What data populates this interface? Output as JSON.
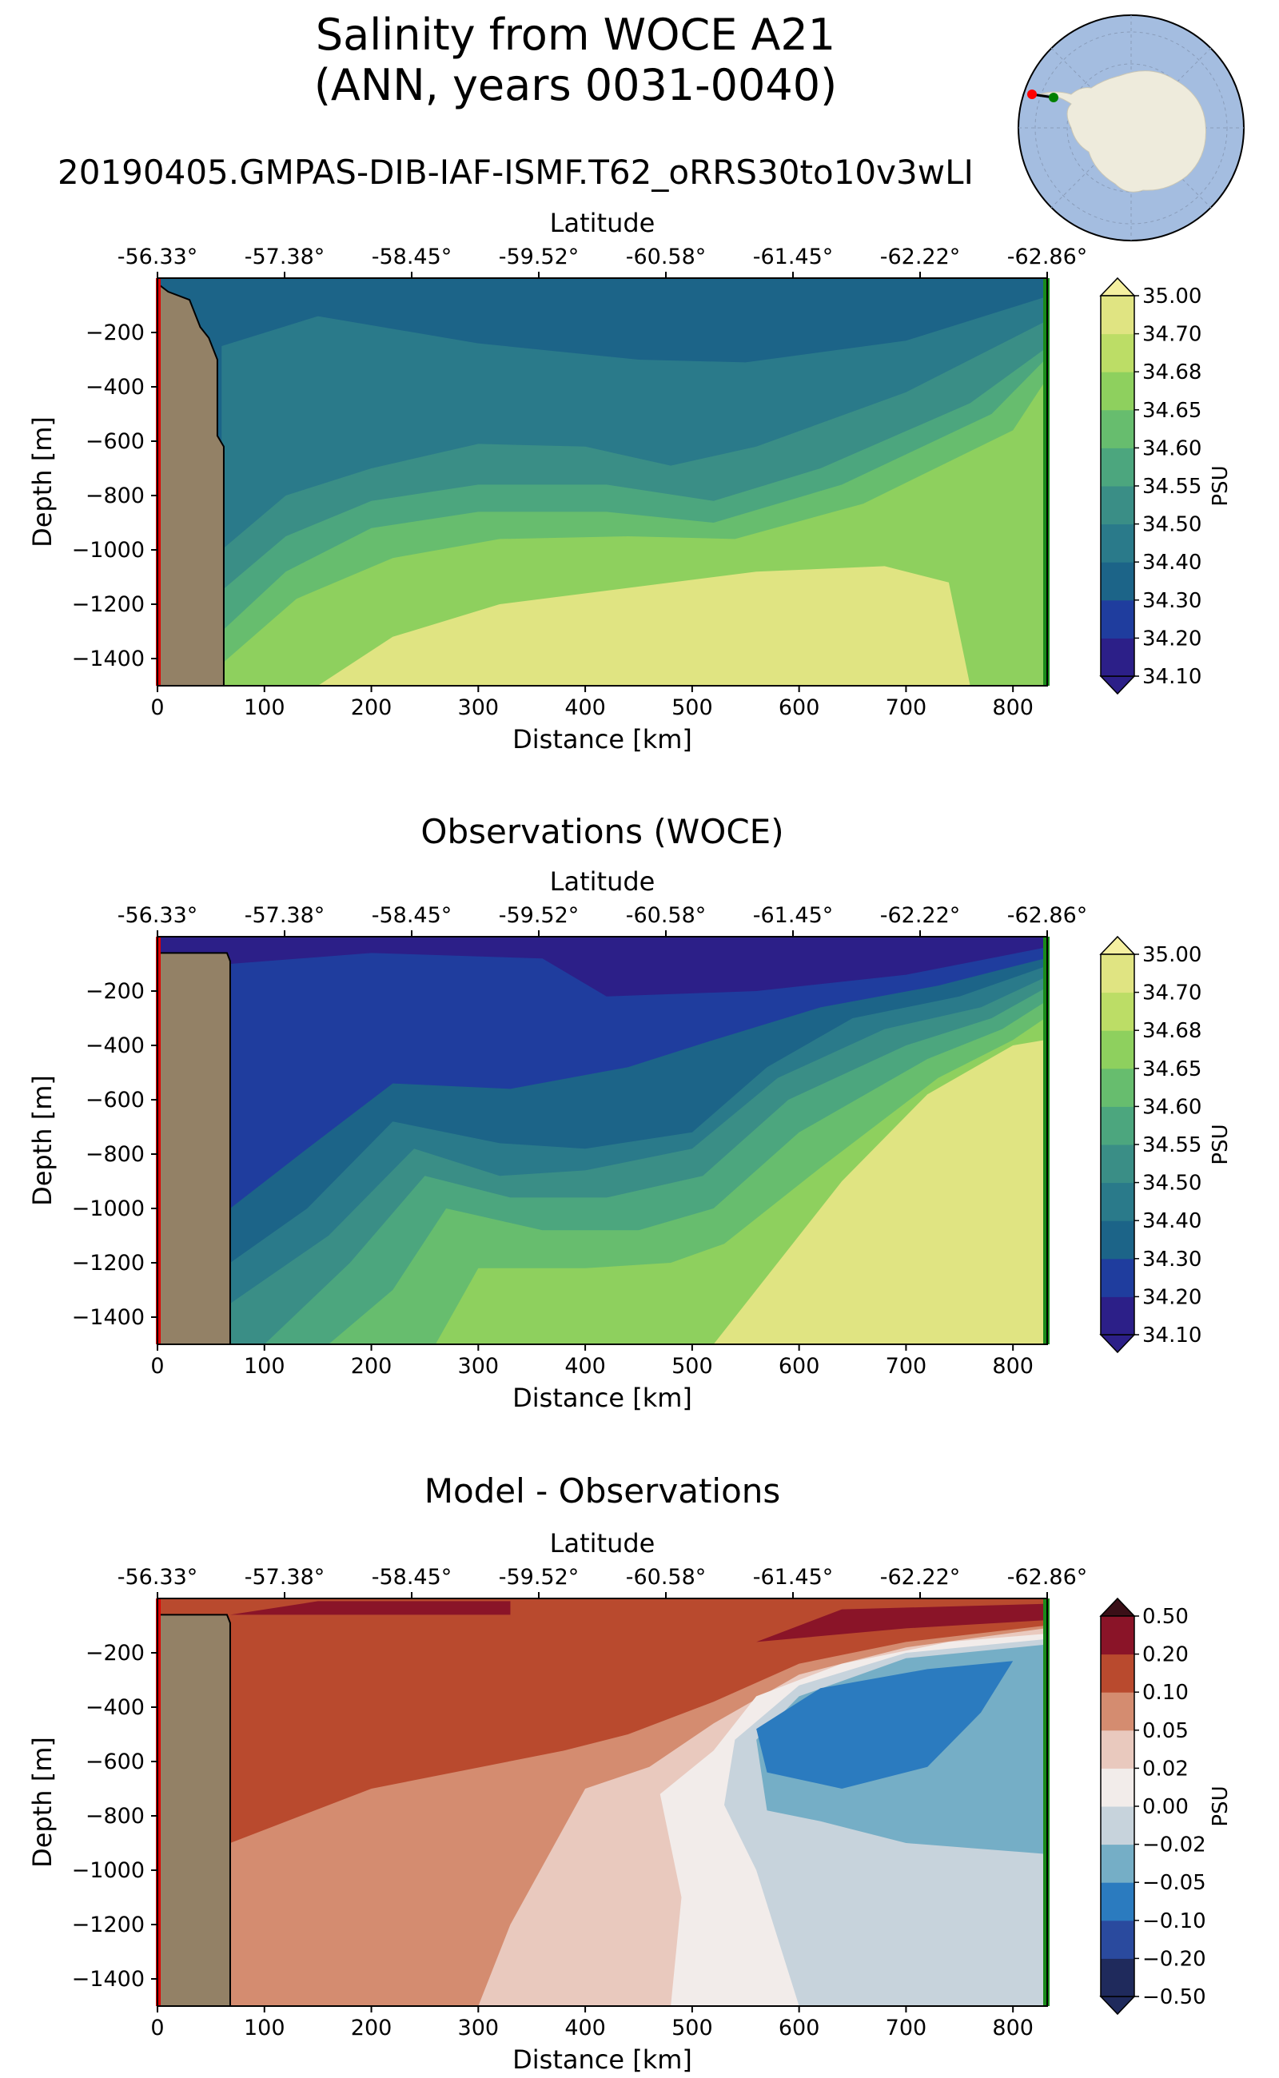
{
  "figure": {
    "title_line1": "Salinity from WOCE A21",
    "title_line2": "(ANN, years 0031-0040)",
    "model_run": "20190405.GMPAS-DIB-IAF-ISMF.T62_oRRS30to10v3wLI"
  },
  "inset_map": {
    "description_icon": "antarctica-map-icon",
    "start_marker_color": "#ff0000",
    "end_marker_color": "#008000"
  },
  "chart_data": [
    {
      "type": "heatmap",
      "title": "",
      "xlabel": "Distance [km]",
      "ylabel": "Depth [m]",
      "top_axis_label": "Latitude",
      "latitudes": [
        "-56.33°",
        "-57.38°",
        "-58.45°",
        "-59.52°",
        "-60.58°",
        "-61.45°",
        "-62.22°",
        "-62.86°"
      ],
      "x_ticks": [
        0,
        100,
        200,
        300,
        400,
        500,
        600,
        700,
        800
      ],
      "y_ticks": [
        -200,
        -400,
        -600,
        -800,
        -1000,
        -1200,
        -1400
      ],
      "xlim": [
        0,
        832
      ],
      "ylim": [
        -1500,
        0
      ],
      "colorbar_label": "PSU",
      "levels": [
        "34.10",
        "34.20",
        "34.30",
        "34.40",
        "34.50",
        "34.55",
        "34.60",
        "34.65",
        "34.68",
        "34.70",
        "35.00"
      ],
      "colors": [
        "#2c1f88",
        "#1f3d9e",
        "#1c6488",
        "#2a7a8a",
        "#3a8e86",
        "#4ca67e",
        "#67bd6e",
        "#8ed05e",
        "#bcdd66",
        "#e0e482",
        "#f5f0a0"
      ],
      "bathymetry": [
        [
          0,
          -20
        ],
        [
          10,
          -50
        ],
        [
          30,
          -80
        ],
        [
          40,
          -180
        ],
        [
          48,
          -220
        ],
        [
          56,
          -300
        ],
        [
          56,
          -580
        ],
        [
          62,
          -620
        ],
        [
          62,
          -1500
        ]
      ],
      "field": [
        {
          "level": 2,
          "top": [
            [
              0,
              -20
            ],
            [
              830,
              -20
            ]
          ]
        },
        {
          "level": 3,
          "top": [
            [
              60,
              -250
            ],
            [
              150,
              -140
            ],
            [
              300,
              -240
            ],
            [
              450,
              -300
            ],
            [
              550,
              -310
            ],
            [
              700,
              -230
            ],
            [
              830,
              -70
            ]
          ]
        },
        {
          "level": 4,
          "top": [
            [
              60,
              -1000
            ],
            [
              120,
              -800
            ],
            [
              200,
              -700
            ],
            [
              300,
              -610
            ],
            [
              400,
              -620
            ],
            [
              480,
              -690
            ],
            [
              560,
              -620
            ],
            [
              700,
              -420
            ],
            [
              830,
              -160
            ]
          ]
        },
        {
          "level": 5,
          "top": [
            [
              60,
              -1150
            ],
            [
              120,
              -950
            ],
            [
              200,
              -820
            ],
            [
              300,
              -760
            ],
            [
              420,
              -760
            ],
            [
              520,
              -820
            ],
            [
              620,
              -700
            ],
            [
              760,
              -460
            ],
            [
              830,
              -260
            ]
          ]
        },
        {
          "level": 6,
          "top": [
            [
              60,
              -1300
            ],
            [
              120,
              -1080
            ],
            [
              200,
              -920
            ],
            [
              300,
              -860
            ],
            [
              420,
              -860
            ],
            [
              520,
              -900
            ],
            [
              640,
              -760
            ],
            [
              780,
              -500
            ],
            [
              830,
              -300
            ]
          ]
        },
        {
          "level": 7,
          "top": [
            [
              60,
              -1420
            ],
            [
              130,
              -1180
            ],
            [
              220,
              -1030
            ],
            [
              320,
              -960
            ],
            [
              440,
              -950
            ],
            [
              540,
              -960
            ],
            [
              660,
              -830
            ],
            [
              800,
              -560
            ],
            [
              830,
              -380
            ]
          ]
        },
        {
          "level": 9,
          "top": [
            [
              150,
              -1500
            ],
            [
              220,
              -1320
            ],
            [
              320,
              -1200
            ],
            [
              440,
              -1140
            ],
            [
              560,
              -1080
            ],
            [
              680,
              -1060
            ],
            [
              740,
              -1120
            ],
            [
              760,
              -1500
            ]
          ]
        }
      ]
    },
    {
      "type": "heatmap",
      "title": "Observations (WOCE)",
      "xlabel": "Distance [km]",
      "ylabel": "Depth [m]",
      "top_axis_label": "Latitude",
      "latitudes": [
        "-56.33°",
        "-57.38°",
        "-58.45°",
        "-59.52°",
        "-60.58°",
        "-61.45°",
        "-62.22°",
        "-62.86°"
      ],
      "x_ticks": [
        0,
        100,
        200,
        300,
        400,
        500,
        600,
        700,
        800
      ],
      "y_ticks": [
        -200,
        -400,
        -600,
        -800,
        -1000,
        -1200,
        -1400
      ],
      "xlim": [
        0,
        832
      ],
      "ylim": [
        -1500,
        0
      ],
      "colorbar_label": "PSU",
      "levels": [
        "34.10",
        "34.20",
        "34.30",
        "34.40",
        "34.50",
        "34.55",
        "34.60",
        "34.65",
        "34.68",
        "34.70",
        "35.00"
      ],
      "colors": [
        "#2c1f88",
        "#1f3d9e",
        "#1c6488",
        "#2a7a8a",
        "#3a8e86",
        "#4ca67e",
        "#67bd6e",
        "#8ed05e",
        "#bcdd66",
        "#e0e482",
        "#f5f0a0"
      ],
      "bathymetry": [
        [
          0,
          -60
        ],
        [
          65,
          -60
        ],
        [
          68,
          -90
        ],
        [
          68,
          -1500
        ]
      ],
      "field": [
        {
          "level": 0,
          "top": [
            [
              0,
              -5
            ],
            [
              830,
              -5
            ]
          ]
        },
        {
          "level": 1,
          "top": [
            [
              68,
              -100
            ],
            [
              200,
              -60
            ],
            [
              360,
              -80
            ],
            [
              420,
              -220
            ],
            [
              560,
              -200
            ],
            [
              700,
              -140
            ],
            [
              830,
              -40
            ]
          ]
        },
        {
          "level": 2,
          "top": [
            [
              68,
              -1000
            ],
            [
              140,
              -780
            ],
            [
              220,
              -540
            ],
            [
              330,
              -560
            ],
            [
              440,
              -480
            ],
            [
              520,
              -380
            ],
            [
              620,
              -260
            ],
            [
              730,
              -180
            ],
            [
              830,
              -80
            ]
          ]
        },
        {
          "level": 3,
          "top": [
            [
              68,
              -1200
            ],
            [
              140,
              -1000
            ],
            [
              220,
              -680
            ],
            [
              320,
              -760
            ],
            [
              400,
              -780
            ],
            [
              500,
              -720
            ],
            [
              570,
              -480
            ],
            [
              650,
              -300
            ],
            [
              750,
              -220
            ],
            [
              830,
              -110
            ]
          ]
        },
        {
          "level": 4,
          "top": [
            [
              68,
              -1350
            ],
            [
              160,
              -1100
            ],
            [
              240,
              -780
            ],
            [
              320,
              -880
            ],
            [
              400,
              -860
            ],
            [
              500,
              -780
            ],
            [
              580,
              -520
            ],
            [
              680,
              -340
            ],
            [
              770,
              -260
            ],
            [
              830,
              -150
            ]
          ]
        },
        {
          "level": 5,
          "top": [
            [
              100,
              -1500
            ],
            [
              180,
              -1200
            ],
            [
              250,
              -880
            ],
            [
              330,
              -960
            ],
            [
              420,
              -960
            ],
            [
              510,
              -880
            ],
            [
              590,
              -600
            ],
            [
              700,
              -400
            ],
            [
              780,
              -300
            ],
            [
              830,
              -190
            ]
          ]
        },
        {
          "level": 6,
          "top": [
            [
              160,
              -1500
            ],
            [
              220,
              -1300
            ],
            [
              270,
              -1000
            ],
            [
              360,
              -1080
            ],
            [
              450,
              -1080
            ],
            [
              520,
              -1000
            ],
            [
              600,
              -720
            ],
            [
              720,
              -450
            ],
            [
              790,
              -340
            ],
            [
              830,
              -240
            ]
          ]
        },
        {
          "level": 7,
          "top": [
            [
              260,
              -1500
            ],
            [
              300,
              -1220
            ],
            [
              400,
              -1220
            ],
            [
              480,
              -1200
            ],
            [
              530,
              -1130
            ],
            [
              620,
              -850
            ],
            [
              730,
              -520
            ],
            [
              800,
              -380
            ],
            [
              830,
              -300
            ]
          ]
        },
        {
          "level": 9,
          "top": [
            [
              520,
              -1500
            ],
            [
              580,
              -1200
            ],
            [
              640,
              -900
            ],
            [
              720,
              -580
            ],
            [
              800,
              -400
            ],
            [
              830,
              -380
            ]
          ]
        }
      ]
    },
    {
      "type": "heatmap",
      "title": "Model - Observations",
      "xlabel": "Distance [km]",
      "ylabel": "Depth [m]",
      "top_axis_label": "Latitude",
      "latitudes": [
        "-56.33°",
        "-57.38°",
        "-58.45°",
        "-59.52°",
        "-60.58°",
        "-61.45°",
        "-62.22°",
        "-62.86°"
      ],
      "x_ticks": [
        0,
        100,
        200,
        300,
        400,
        500,
        600,
        700,
        800
      ],
      "y_ticks": [
        -200,
        -400,
        -600,
        -800,
        -1000,
        -1200,
        -1400
      ],
      "xlim": [
        0,
        832
      ],
      "ylim": [
        -1500,
        0
      ],
      "colorbar_label": "PSU",
      "levels": [
        "−0.50",
        "−0.20",
        "−0.10",
        "−0.05",
        "−0.02",
        "0.00",
        "0.02",
        "0.05",
        "0.10",
        "0.20",
        "0.50"
      ],
      "colors": [
        "#1f2a5c",
        "#2a4a9e",
        "#2b7bbf",
        "#75aec6",
        "#c7d3dc",
        "#f2ecea",
        "#e9c9be",
        "#d48c70",
        "#b94a2e",
        "#8a1428",
        "#3a0f17"
      ],
      "bathymetry": [
        [
          0,
          -60
        ],
        [
          65,
          -60
        ],
        [
          68,
          -90
        ],
        [
          68,
          -1500
        ]
      ],
      "field": [
        {
          "level": 8,
          "top": [
            [
              0,
              -5
            ],
            [
              830,
              -5
            ]
          ]
        },
        {
          "level": 7,
          "top": [
            [
              68,
              -1500
            ],
            [
              68,
              -900
            ],
            [
              200,
              -700
            ],
            [
              380,
              -560
            ],
            [
              440,
              -500
            ],
            [
              520,
              -380
            ],
            [
              600,
              -240
            ],
            [
              700,
              -160
            ],
            [
              830,
              -100
            ],
            [
              830,
              -1500
            ]
          ]
        },
        {
          "level": 6,
          "top": [
            [
              300,
              -1500
            ],
            [
              330,
              -1200
            ],
            [
              400,
              -700
            ],
            [
              460,
              -620
            ],
            [
              520,
              -460
            ],
            [
              600,
              -280
            ],
            [
              700,
              -180
            ],
            [
              830,
              -110
            ],
            [
              830,
              -1500
            ]
          ]
        },
        {
          "level": 5,
          "top": [
            [
              480,
              -1500
            ],
            [
              490,
              -1100
            ],
            [
              470,
              -720
            ],
            [
              520,
              -560
            ],
            [
              560,
              -360
            ],
            [
              640,
              -240
            ],
            [
              740,
              -160
            ],
            [
              830,
              -130
            ],
            [
              830,
              -1500
            ]
          ]
        },
        {
          "level": 4,
          "top": [
            [
              600,
              -1500
            ],
            [
              560,
              -1000
            ],
            [
              530,
              -760
            ],
            [
              540,
              -520
            ],
            [
              600,
              -320
            ],
            [
              700,
              -200
            ],
            [
              830,
              -150
            ],
            [
              830,
              -1500
            ]
          ]
        },
        {
          "level": 3,
          "top": [
            [
              570,
              -780
            ],
            [
              560,
              -520
            ],
            [
              600,
              -360
            ],
            [
              700,
              -220
            ],
            [
              830,
              -170
            ],
            [
              830,
              -940
            ],
            [
              700,
              -900
            ],
            [
              620,
              -820
            ]
          ]
        },
        {
          "level": 2,
          "top": [
            [
              570,
              -640
            ],
            [
              560,
              -480
            ],
            [
              620,
              -330
            ],
            [
              720,
              -260
            ],
            [
              800,
              -230
            ],
            [
              770,
              -420
            ],
            [
              720,
              -620
            ],
            [
              640,
              -700
            ]
          ]
        },
        {
          "level": 9,
          "top": [
            [
              68,
              -60
            ],
            [
              150,
              -10
            ],
            [
              330,
              -10
            ],
            [
              330,
              -60
            ],
            [
              150,
              -60
            ]
          ]
        },
        {
          "level": 9,
          "top": [
            [
              560,
              -160
            ],
            [
              640,
              -40
            ],
            [
              830,
              -20
            ],
            [
              830,
              -80
            ],
            [
              700,
              -110
            ]
          ]
        }
      ]
    }
  ]
}
